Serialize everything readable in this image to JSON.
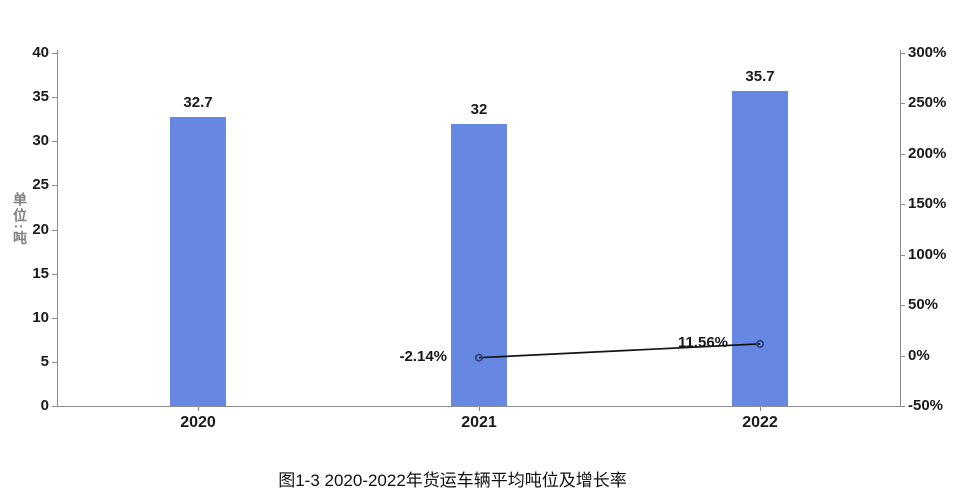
{
  "title": {
    "text": "图1-3 2020-2022年货运车辆平均吨位及增长率"
  },
  "left_axis_unit": "单位:吨",
  "colors": {
    "background": "#ffffff",
    "bar": "#6687e2",
    "line": "#141414",
    "marker": "#33477a",
    "axis": "#8c8c8c",
    "tick_label": "#1a1a1a",
    "unit_label": "#808080"
  },
  "chart_data": {
    "type": "bar",
    "subtype": "bar+line dual-axis combo",
    "title": "图1-3 2020-2022年货运车辆平均吨位及增长率",
    "categories": [
      "2020",
      "2021",
      "2022"
    ],
    "series": [
      {
        "name": "平均吨位",
        "type": "bar",
        "axis": "left",
        "values": [
          32.7,
          32,
          35.7
        ],
        "labels": [
          "32.7",
          "32",
          "35.7"
        ],
        "color": "#6687e2"
      },
      {
        "name": "增长率",
        "type": "line",
        "axis": "right",
        "values": [
          null,
          -2.14,
          11.56
        ],
        "labels": [
          null,
          "-2.14%",
          "11.56%"
        ],
        "color": "#141414",
        "marker_color": "#33477a"
      }
    ],
    "left_axis": {
      "unit_label": "单位:吨",
      "min": 0,
      "max": 40,
      "step": 5,
      "tick_labels": [
        "0",
        "5",
        "10",
        "15",
        "20",
        "25",
        "30",
        "35",
        "40"
      ]
    },
    "right_axis": {
      "min": -50,
      "max": 300,
      "step": 50,
      "tick_labels": [
        "-50%",
        "0%",
        "50%",
        "100%",
        "150%",
        "200%",
        "250%",
        "300%"
      ]
    },
    "grid": false,
    "legend": "none"
  }
}
